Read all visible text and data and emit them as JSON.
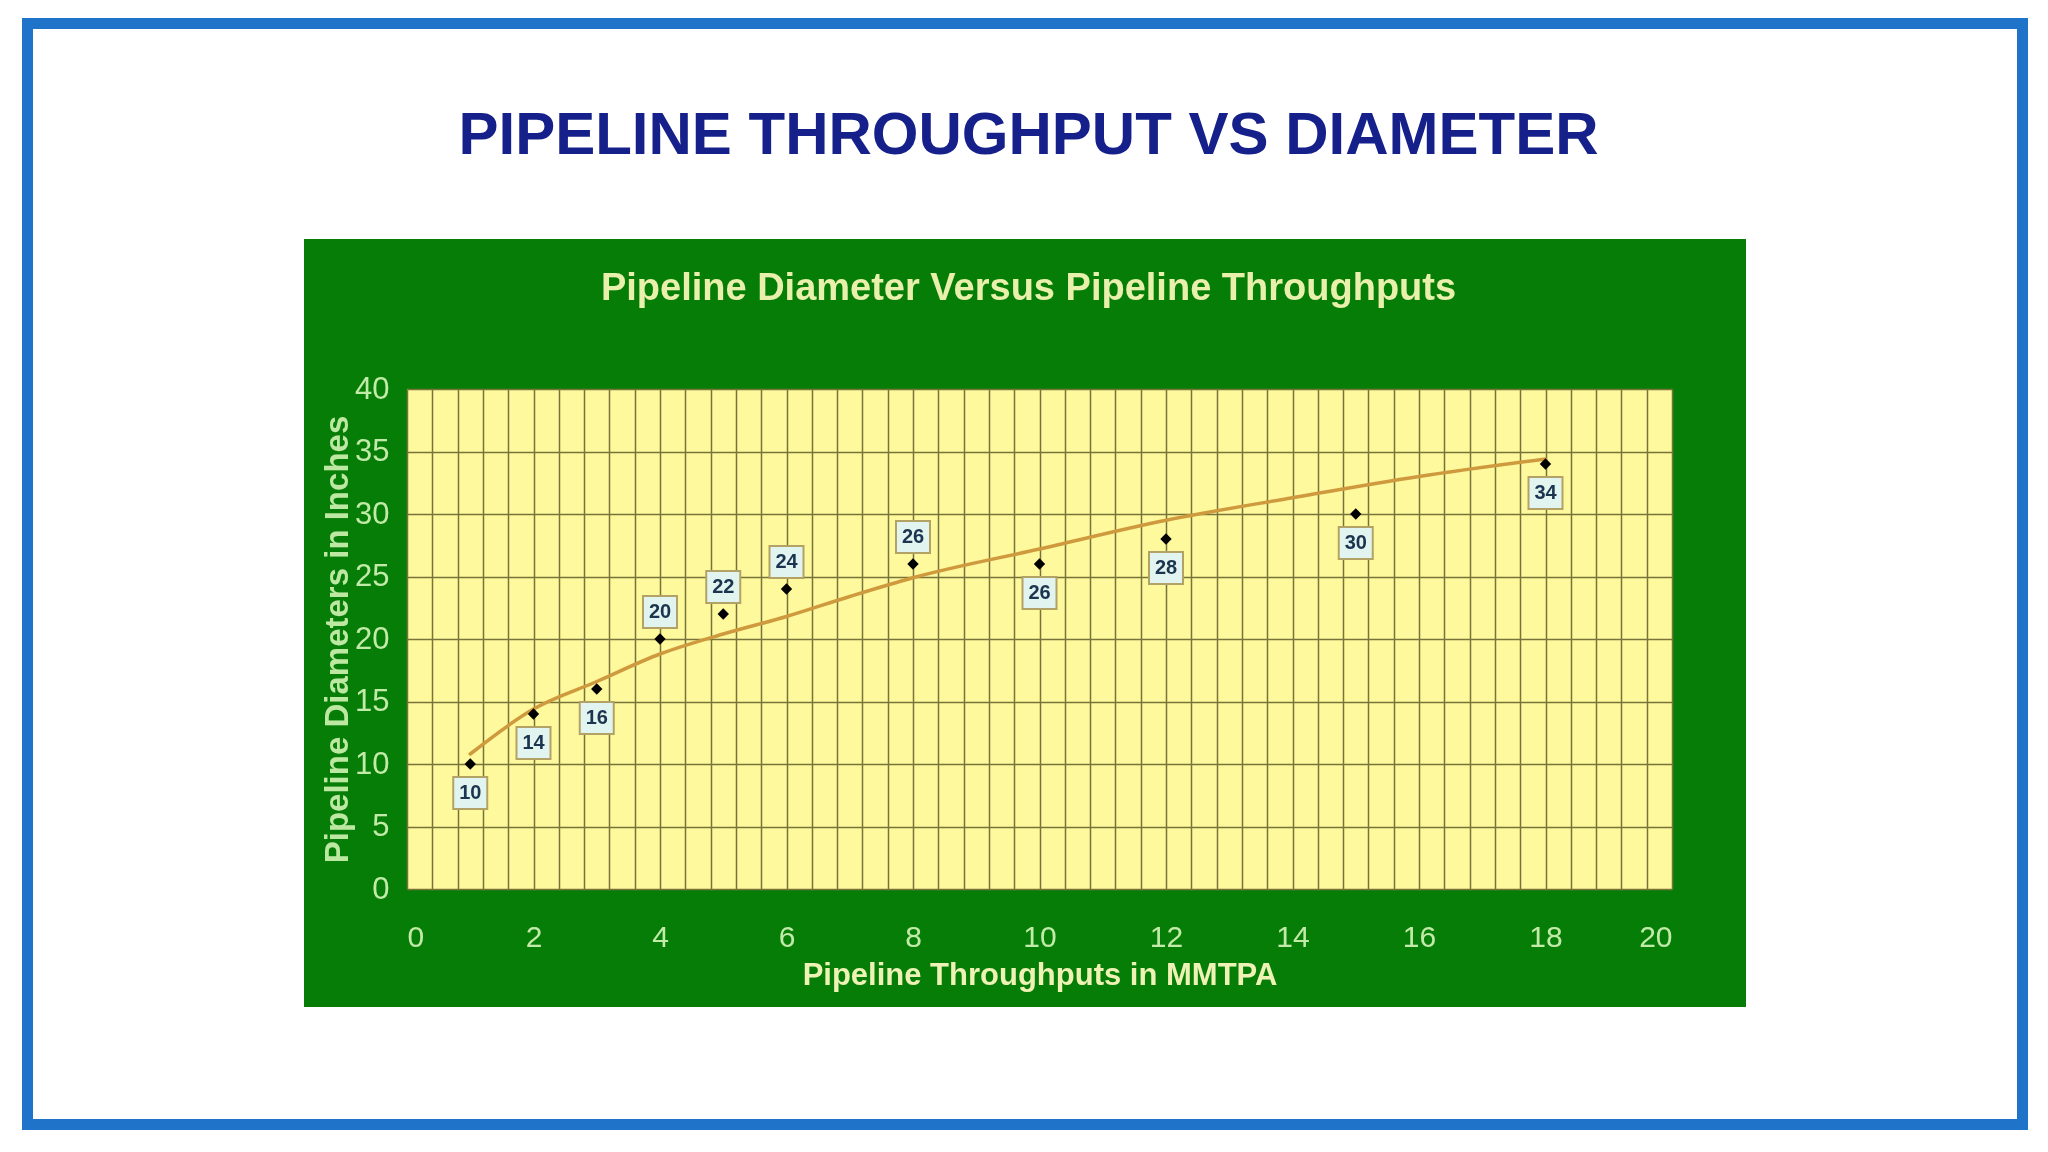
{
  "chart_data": {
    "type": "scatter",
    "title": "PIPELINE THROUGHPUT VS DIAMETER",
    "subtitle": "Pipeline Diameter Versus Pipeline Throughputs",
    "xlabel": "Pipeline Throughputs in MMTPA",
    "ylabel": "Pipeline Diameters in Inches",
    "xlim": [
      0,
      20
    ],
    "ylim": [
      0,
      40
    ],
    "xticks": [
      0,
      {
        "value": 0.4,
        "label": null
      },
      {
        "value": 0.8,
        "label": null
      },
      {
        "value": 1.2,
        "label": null
      },
      {
        "value": 1.6,
        "label": null
      },
      2,
      {
        "value": 2.4,
        "label": null
      },
      {
        "value": 2.8,
        "label": null
      },
      {
        "value": 3.2,
        "label": null
      },
      {
        "value": 3.6,
        "label": null
      },
      4,
      {
        "value": 4.4,
        "label": null
      },
      {
        "value": 4.8,
        "label": null
      },
      {
        "value": 5.2,
        "label": null
      },
      {
        "value": 5.6,
        "label": null
      },
      6,
      {
        "value": 6.4,
        "label": null
      },
      {
        "value": 6.8,
        "label": null
      },
      {
        "value": 7.2,
        "label": null
      },
      {
        "value": 7.6,
        "label": null
      },
      8,
      {
        "value": 8.4,
        "label": null
      },
      {
        "value": 8.8,
        "label": null
      },
      {
        "value": 9.2,
        "label": null
      },
      {
        "value": 9.6,
        "label": null
      },
      10,
      {
        "value": 10.4,
        "label": null
      },
      {
        "value": 10.8,
        "label": null
      },
      {
        "value": 11.2,
        "label": null
      },
      {
        "value": 11.6,
        "label": null
      },
      12,
      {
        "value": 12.4,
        "label": null
      },
      {
        "value": 12.8,
        "label": null
      },
      {
        "value": 13.2,
        "label": null
      },
      {
        "value": 13.6,
        "label": null
      },
      14,
      {
        "value": 14.4,
        "label": null
      },
      {
        "value": 14.8,
        "label": null
      },
      {
        "value": 15.2,
        "label": null
      },
      {
        "value": 15.6,
        "label": null
      },
      16,
      {
        "value": 16.4,
        "label": null
      },
      {
        "value": 16.8,
        "label": null
      },
      {
        "value": 17.2,
        "label": null
      },
      {
        "value": 17.6,
        "label": null
      },
      18,
      {
        "value": 18.4,
        "label": null
      },
      {
        "value": 18.8,
        "label": null
      },
      {
        "value": 19.2,
        "label": null
      },
      {
        "value": 19.6,
        "label": null
      },
      20
    ],
    "yticks": [
      0,
      5,
      10,
      15,
      20,
      25,
      30,
      35,
      40
    ],
    "grid": true,
    "series": [
      {
        "color": "#000000",
        "marker": "diamond",
        "data_labels": true,
        "x": [
          1,
          2,
          3,
          4,
          5,
          6,
          8,
          10,
          12,
          15,
          18
        ],
        "values": [
          10,
          14,
          16,
          20,
          22,
          24,
          26,
          26,
          28,
          30,
          34
        ]
      },
      {
        "type": "line",
        "color": "#cf9a3e",
        "marker": "none",
        "line_style": "solid",
        "x": [
          1,
          2,
          3,
          4,
          5,
          6,
          7,
          8,
          10,
          12,
          14,
          16,
          18
        ],
        "values": [
          10.8,
          14.4,
          16.6,
          18.8,
          20.4,
          21.8,
          23.4,
          24.9,
          27.2,
          29.5,
          31.3,
          33.0,
          34.4
        ]
      }
    ]
  }
}
